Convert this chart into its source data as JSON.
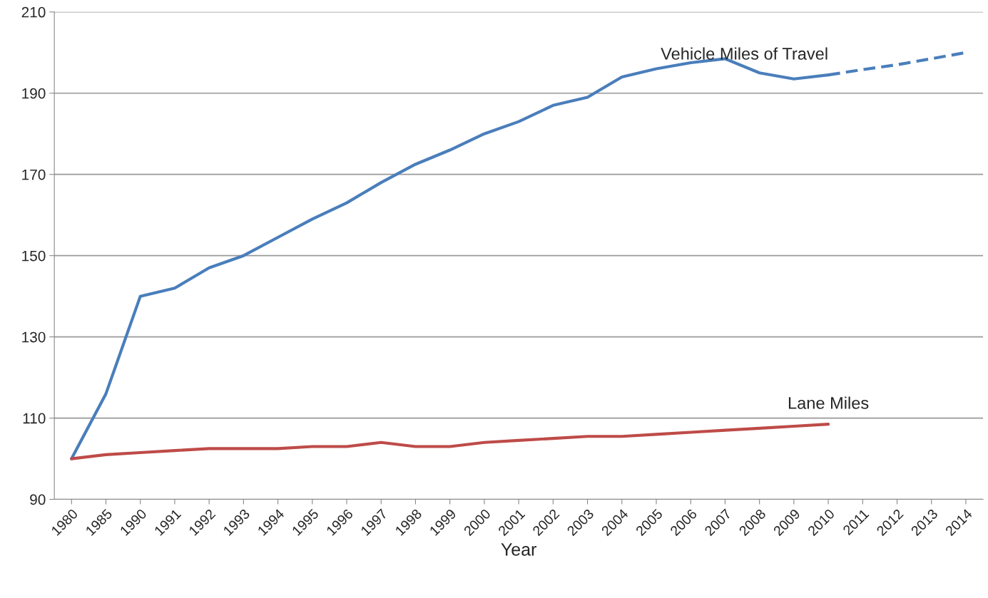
{
  "chart_data": {
    "type": "line",
    "xlabel": "Year",
    "categories": [
      "1980",
      "1985",
      "1990",
      "1991",
      "1992",
      "1993",
      "1994",
      "1995",
      "1996",
      "1997",
      "1998",
      "1999",
      "2000",
      "2001",
      "2002",
      "2003",
      "2004",
      "2005",
      "2006",
      "2007",
      "2008",
      "2009",
      "2010",
      "2011",
      "2012",
      "2013",
      "2014"
    ],
    "series": [
      {
        "name": "Vehicle Miles of Travel",
        "color": "#4a7ebb",
        "line_style": "solid",
        "values": [
          100,
          116,
          140,
          142,
          147,
          150,
          154.5,
          159,
          163,
          168,
          172.5,
          176,
          180,
          183,
          187,
          189,
          194,
          196,
          197.5,
          198.5,
          195,
          193.5,
          194.5,
          null,
          null,
          null,
          null
        ]
      },
      {
        "color": "#4a7ebb",
        "line_style": "dashed",
        "values": [
          null,
          null,
          null,
          null,
          null,
          null,
          null,
          null,
          null,
          null,
          null,
          null,
          null,
          null,
          null,
          null,
          null,
          null,
          null,
          null,
          null,
          null,
          194.5,
          195.8,
          197,
          198.5,
          200
        ]
      },
      {
        "name": "Lane Miles",
        "color": "#be4b48",
        "line_style": "solid",
        "values": [
          100,
          101,
          101.5,
          102,
          102.5,
          102.5,
          102.5,
          103,
          103,
          104,
          103,
          103,
          104,
          104.5,
          105,
          105.5,
          105.5,
          106,
          106.5,
          107,
          107.5,
          108,
          108.5,
          null,
          null,
          null,
          null
        ]
      }
    ],
    "ylim": [
      90,
      210
    ],
    "yticks": [
      90,
      110,
      130,
      150,
      170,
      190,
      210
    ],
    "grid": "y",
    "legend": false,
    "marker": "none"
  }
}
